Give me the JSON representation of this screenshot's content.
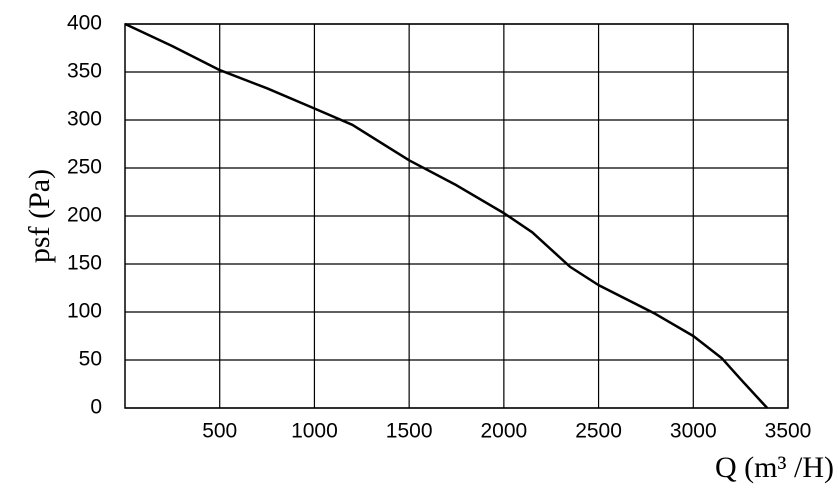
{
  "chart_data": {
    "type": "line",
    "x_label": "Q (m³ /H)",
    "y_label": "psf (Pa)",
    "x": [
      0,
      250,
      500,
      750,
      1000,
      1200,
      1500,
      1750,
      2000,
      2150,
      2350,
      2500,
      2800,
      3000,
      3150,
      3250,
      3390
    ],
    "values": [
      400,
      377,
      352,
      333,
      312,
      295,
      258,
      232,
      203,
      183,
      147,
      128,
      98,
      75,
      52,
      30,
      0
    ],
    "color": "#000000",
    "xlim": [
      0,
      3500
    ],
    "xticks": [
      500,
      1000,
      1500,
      2000,
      2500,
      3000,
      3500
    ],
    "ylim": [
      0,
      400
    ],
    "yticks": [
      0,
      50,
      100,
      150,
      200,
      250,
      300,
      350,
      400
    ],
    "grid": true
  }
}
